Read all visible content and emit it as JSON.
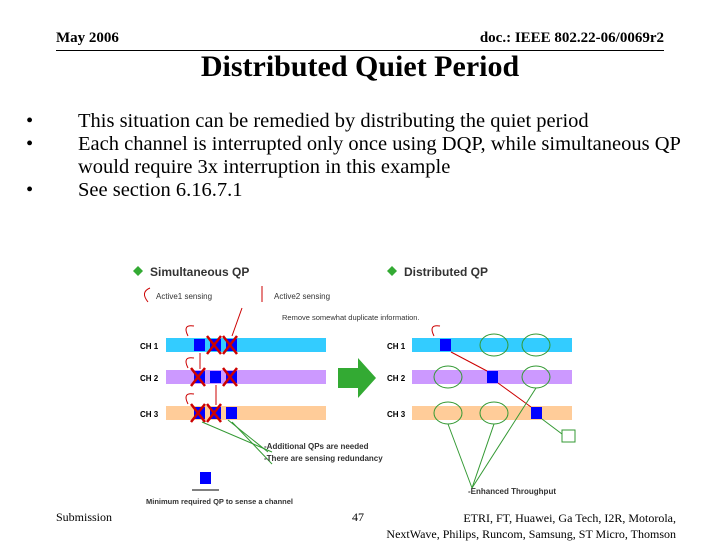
{
  "header": {
    "date": "May 2006",
    "doc_id": "doc.: IEEE 802.22-06/0069r2"
  },
  "slide": {
    "title": "Distributed Quiet Period",
    "bullets": [
      "This situation can be remedied by distributing the quiet period",
      "Each channel is interrupted only once using DQP, while simultaneous QP would require 3x interruption in this example",
      "See section 6.16.7.1"
    ],
    "bullet_symbol": "•"
  },
  "figure": {
    "left_heading": "Simultaneous QP",
    "right_heading": "Distributed QP",
    "active1": "Active1 sensing",
    "active2": "Active2 sensing",
    "remove_note": "Remove somewhat duplicate information.",
    "channels_left": [
      "CH 1",
      "CH 2",
      "CH 3"
    ],
    "channels_right": [
      "CH 1",
      "CH 2",
      "CH 3"
    ],
    "note_additional": "-Additional QPs are needed",
    "note_redundancy": "-There are sensing redundancy",
    "note_minimum": "Minimum required QP to sense a channel",
    "note_throughput": "-Enhanced Throughput",
    "colors": {
      "ch1": "#33ccff",
      "ch2": "#cc99ff",
      "ch3": "#ffcc99",
      "qp_block": "#0000ff",
      "arrow_green": "#33aa33",
      "red": "#cc0000",
      "green_line": "#339933"
    }
  },
  "footer": {
    "left": "Submission",
    "page": "47",
    "right_line1": "ETRI, FT, Huawei, Ga Tech, I2R, Motorola,",
    "right_line2": "NextWave, Philips, Runcom, Samsung, ST Micro, Thomson"
  }
}
